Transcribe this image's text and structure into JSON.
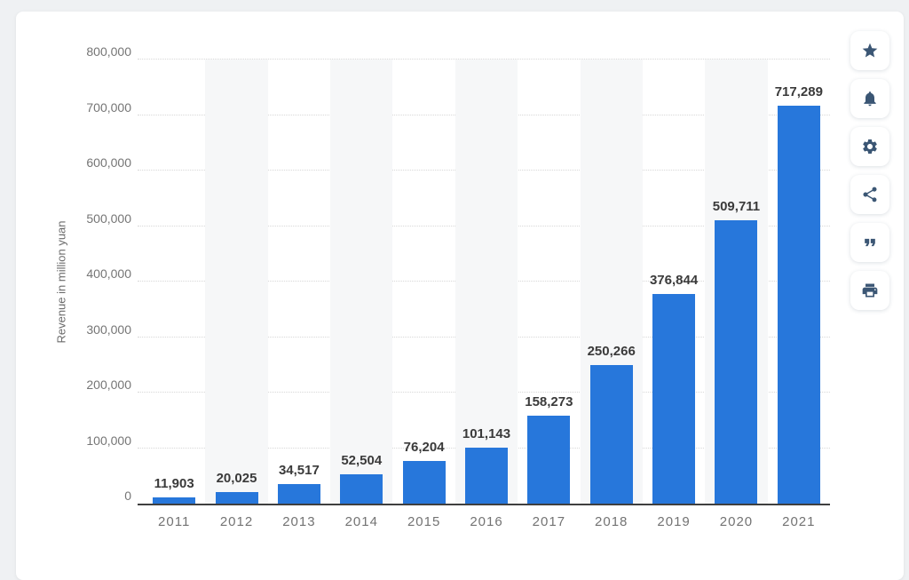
{
  "chart_data": {
    "type": "bar",
    "title": "",
    "ylabel": "Revenue in million yuan",
    "xlabel": "",
    "categories": [
      "2011",
      "2012",
      "2013",
      "2014",
      "2015",
      "2016",
      "2017",
      "2018",
      "2019",
      "2020",
      "2021"
    ],
    "values": [
      11903,
      20025,
      34517,
      52504,
      76204,
      101143,
      158273,
      250266,
      376844,
      509711,
      717289
    ],
    "value_labels": [
      "11,903",
      "20,025",
      "34,517",
      "52,504",
      "76,204",
      "101,143",
      "158,273",
      "250,266",
      "376,844",
      "509,711",
      "717,289"
    ],
    "ylim": [
      0,
      800000
    ],
    "yticks": [
      {
        "value": 0,
        "label": "0"
      },
      {
        "value": 100000,
        "label": "100,000"
      },
      {
        "value": 200000,
        "label": "200,000"
      },
      {
        "value": 300000,
        "label": "300,000"
      },
      {
        "value": 400000,
        "label": "400,000"
      },
      {
        "value": 500000,
        "label": "500,000"
      },
      {
        "value": 600000,
        "label": "600,000"
      },
      {
        "value": 700000,
        "label": "700,000"
      },
      {
        "value": 800000,
        "label": "800,000"
      }
    ],
    "grid": "horizontal-dotted",
    "legend": "none",
    "bar_color": "#2777db",
    "band_color": "#f6f7f8"
  },
  "toolbar": {
    "icons": [
      "star-icon",
      "bell-icon",
      "gear-icon",
      "share-icon",
      "quote-icon",
      "print-icon"
    ]
  },
  "colors": {
    "page_background": "#eff1f3",
    "card_background": "#ffffff",
    "axis_line": "#3f3f3f",
    "icon_color": "#3b5674"
  }
}
